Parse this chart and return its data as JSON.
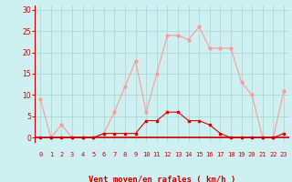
{
  "hours": [
    0,
    1,
    2,
    3,
    4,
    5,
    6,
    7,
    8,
    9,
    10,
    11,
    12,
    13,
    14,
    15,
    16,
    17,
    18,
    19,
    20,
    21,
    22,
    23
  ],
  "wind_avg": [
    0,
    0,
    0,
    0,
    0,
    0,
    1,
    1,
    1,
    1,
    4,
    4,
    6,
    6,
    4,
    4,
    3,
    1,
    0,
    0,
    0,
    0,
    0,
    1
  ],
  "wind_gust": [
    9,
    0,
    3,
    0,
    0,
    0,
    1,
    6,
    12,
    18,
    6,
    15,
    24,
    24,
    23,
    26,
    21,
    21,
    21,
    13,
    10,
    0,
    0,
    11
  ],
  "bg_color": "#cff0f0",
  "grid_color": "#aad8d8",
  "line_avg_color": "#dd0000",
  "line_gust_color": "#ff9999",
  "xlabel": "Vent moyen/en rafales ( km/h )",
  "yticks": [
    0,
    5,
    10,
    15,
    20,
    25,
    30
  ],
  "ylim": [
    -1,
    31
  ],
  "xlim": [
    -0.5,
    23.5
  ],
  "tick_color": "#cc0000",
  "label_color": "#cc0000",
  "spine_color": "#cc0000",
  "hline_color": "#cc0000"
}
